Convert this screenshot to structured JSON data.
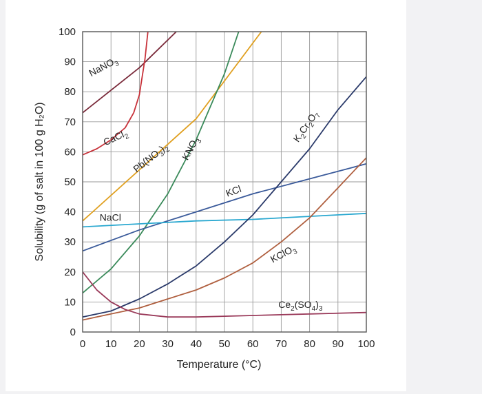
{
  "chart_data": {
    "type": "line",
    "title": "",
    "xlabel": "Temperature (°C)",
    "ylabel": "Solubility (g of salt in 100 g H₂O)",
    "xlim": [
      0,
      100
    ],
    "ylim": [
      0,
      100
    ],
    "xticks": [
      "0",
      "10",
      "20",
      "30",
      "40",
      "50",
      "60",
      "70",
      "80",
      "90",
      "100"
    ],
    "yticks": [
      "0",
      "10",
      "20",
      "30",
      "40",
      "50",
      "60",
      "70",
      "80",
      "90",
      "100"
    ],
    "grid": true,
    "legend": "none",
    "series": [
      {
        "name": "NaNO₃",
        "color": "#7a2a3a",
        "label_parts": [
          [
            "NaNO",
            ""
          ],
          [
            "3",
            "sub"
          ]
        ],
        "x": [
          0,
          20,
          33
        ],
        "y": [
          73,
          88,
          100
        ]
      },
      {
        "name": "CaCl₂",
        "color": "#c8323a",
        "label_parts": [
          [
            "CaCl",
            ""
          ],
          [
            "2",
            "sub"
          ]
        ],
        "x": [
          0,
          5,
          10,
          15,
          18,
          20,
          22,
          23
        ],
        "y": [
          59,
          61,
          64,
          68,
          73,
          79,
          91,
          100
        ]
      },
      {
        "name": "Pb(NO₃)₂",
        "color": "#e0a020",
        "label_parts": [
          [
            "Pb(NO",
            ""
          ],
          [
            "3",
            "sub"
          ],
          [
            ")",
            ""
          ],
          [
            "2",
            "sub"
          ]
        ],
        "x": [
          0,
          20,
          40,
          63
        ],
        "y": [
          37,
          54,
          71,
          100
        ]
      },
      {
        "name": "KNO₃",
        "color": "#3a8a5a",
        "label_parts": [
          [
            "KNO",
            ""
          ],
          [
            "3",
            "sub"
          ]
        ],
        "x": [
          0,
          10,
          20,
          30,
          40,
          50,
          55
        ],
        "y": [
          13,
          21,
          32,
          46,
          64,
          86,
          100
        ]
      },
      {
        "name": "KCl",
        "color": "#3a5a9a",
        "label_parts": [
          [
            "KCl",
            ""
          ]
        ],
        "x": [
          0,
          20,
          40,
          60,
          80,
          100
        ],
        "y": [
          27,
          34,
          40,
          46,
          51,
          56
        ]
      },
      {
        "name": "NaCl",
        "color": "#2aa8d0",
        "label_parts": [
          [
            "NaCl",
            ""
          ]
        ],
        "x": [
          0,
          20,
          40,
          60,
          80,
          100
        ],
        "y": [
          35,
          36,
          37,
          37.5,
          38.5,
          39.5
        ]
      },
      {
        "name": "K₂Cr₂O₇",
        "color": "#2a3a6a",
        "label_parts": [
          [
            "K",
            ""
          ],
          [
            "2",
            "sub"
          ],
          [
            "Cr",
            ""
          ],
          [
            "2",
            "sub"
          ],
          [
            "O",
            ""
          ],
          [
            "7",
            "sub"
          ]
        ],
        "x": [
          0,
          10,
          20,
          30,
          40,
          50,
          60,
          70,
          80,
          90,
          100
        ],
        "y": [
          5,
          7,
          11,
          16,
          22,
          30,
          39,
          50,
          61,
          74,
          85
        ]
      },
      {
        "name": "KClO₃",
        "color": "#b06040",
        "label_parts": [
          [
            "KClO",
            ""
          ],
          [
            "3",
            "sub"
          ]
        ],
        "x": [
          0,
          10,
          20,
          30,
          40,
          50,
          60,
          70,
          80,
          90,
          100
        ],
        "y": [
          4,
          6,
          8,
          11,
          14,
          18,
          23,
          30,
          38,
          48,
          58
        ]
      },
      {
        "name": "Ce₂(SO₄)₃",
        "color": "#9a3a5a",
        "label_parts": [
          [
            "Ce",
            ""
          ],
          [
            "2",
            "sub"
          ],
          [
            "(SO",
            ""
          ],
          [
            "4",
            "sub"
          ],
          [
            ")",
            ""
          ],
          [
            "3",
            "sub"
          ]
        ],
        "x": [
          0,
          5,
          10,
          15,
          20,
          30,
          40,
          60,
          80,
          100
        ],
        "y": [
          20,
          14,
          10,
          7.5,
          6,
          5,
          5,
          5.5,
          6,
          6.5
        ]
      }
    ]
  }
}
